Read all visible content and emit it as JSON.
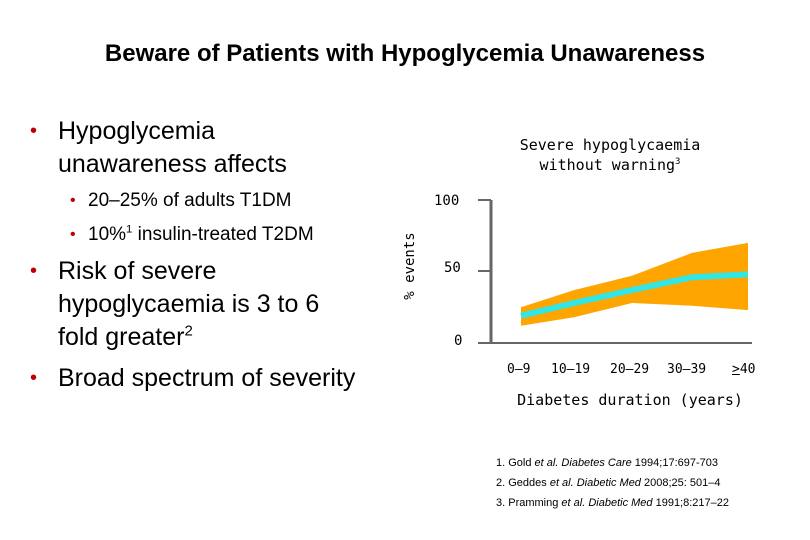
{
  "title": "Beware of Patients with Hypoglycemia Unawareness",
  "bullets": {
    "b1_line1": "Hypoglycemia",
    "b1_line2": "unawareness affects",
    "sub1": "20–25% of adults T1DM",
    "sub2_pre": "10%",
    "sub2_sup": "1",
    "sub2_post": " insulin-treated T2DM",
    "b2_line1": "Risk of severe",
    "b2_line2": "hypoglycaemia is 3 to 6",
    "b2_line3_pre": "fold greater",
    "b2_line3_sup": "2",
    "b3": "Broad spectrum of severity"
  },
  "chart": {
    "title_line1": "Severe hypoglycaemia",
    "title_line2_pre": "without warning",
    "title_line2_sup": "3",
    "ylabel": "% events",
    "yticks": [
      "100",
      "50",
      "0"
    ],
    "xticks": [
      "0–9",
      "10–19",
      "20–29",
      "30–39"
    ],
    "xtick_last_sym": ">",
    "xtick_last_num": "40",
    "xlabel": "Diabetes duration (years)"
  },
  "chart_data": {
    "type": "line",
    "title": "Severe hypoglycaemia without warning",
    "xlabel": "Diabetes duration (years)",
    "ylabel": "% events",
    "categories": [
      "0–9",
      "10–19",
      "20–29",
      "30–39",
      ">40"
    ],
    "ylim": [
      0,
      100
    ],
    "yticks": [
      0,
      50,
      100
    ],
    "series": [
      {
        "values": [
          19,
          28,
          37,
          46,
          48
        ]
      }
    ],
    "band": {
      "upper": [
        25,
        37,
        47,
        63,
        70
      ],
      "lower": [
        12,
        18,
        28,
        26,
        23
      ]
    },
    "colors": {
      "line": "#33e6e6",
      "band": "#ffa500",
      "axis": "#666666"
    }
  },
  "references": [
    {
      "pre": "1. Gold ",
      "em": "et al. Diabetes Care",
      "post": " 1994;17:697-703"
    },
    {
      "pre": "2. Geddes ",
      "em": "et al. Diabetic Med",
      "post": " 2008;25: 501–4"
    },
    {
      "pre": "3. Pramming ",
      "em": "et al. Diabetic Med",
      "post": " 1991;8:217–22"
    }
  ]
}
